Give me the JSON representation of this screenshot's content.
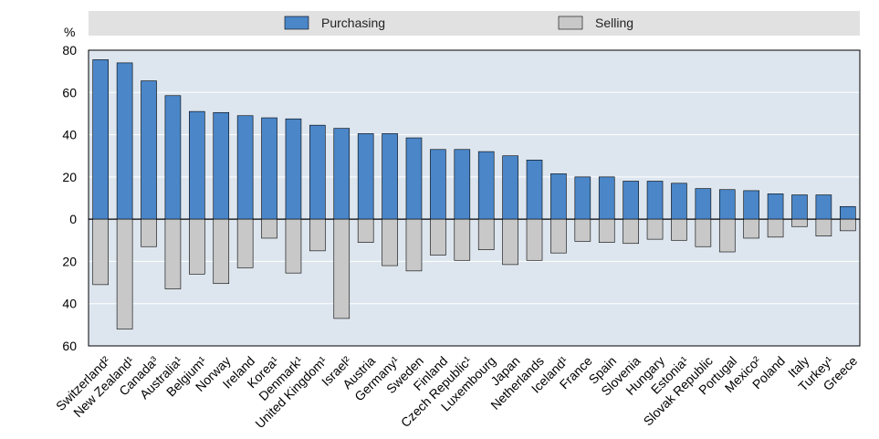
{
  "chart_data": {
    "type": "bar",
    "ylabel": "%",
    "ylim": [
      -60,
      80
    ],
    "yticks": [
      80,
      60,
      40,
      20,
      0,
      -20,
      -40,
      -60
    ],
    "ytick_labels": [
      "80",
      "60",
      "40",
      "20",
      "0",
      "20",
      "40",
      "60"
    ],
    "legend_position": "top",
    "grid": true,
    "categories": [
      "Switzerland²",
      "New Zealand¹",
      "Canada³",
      "Australia¹",
      "Belgium¹",
      "Norway",
      "Ireland",
      "Korea¹",
      "Denmark¹",
      "United Kingdom¹",
      "Israel²",
      "Austria",
      "Germany¹",
      "Sweden",
      "Finland",
      "Czech Republic¹",
      "Luxembourg",
      "Japan",
      "Netherlands",
      "Iceland¹",
      "France",
      "Spain",
      "Slovenia",
      "Hungary",
      "Estonia¹",
      "Slovak Republic",
      "Portugal",
      "Mexico²",
      "Poland",
      "Italy",
      "Turkey¹",
      "Greece"
    ],
    "series": [
      {
        "name": "Purchasing",
        "color": "#4a86c8",
        "values": [
          75.5,
          74,
          65.5,
          58.5,
          51,
          50.5,
          49,
          48,
          47.5,
          44.5,
          43,
          40.5,
          40.5,
          38.5,
          33,
          33,
          32,
          30,
          28,
          21.5,
          20,
          20,
          18,
          18,
          17,
          14.5,
          14,
          13.5,
          12,
          11.5,
          11.5,
          6
        ]
      },
      {
        "name": "Selling",
        "color": "#c8c8c8",
        "values": [
          -31,
          -52,
          -13,
          -33,
          -26,
          -30.5,
          -23,
          -9,
          -25.5,
          -15,
          -47,
          -11,
          -22,
          -24.5,
          -17,
          -19.5,
          -14.5,
          -21.5,
          -19.5,
          -16,
          -10.5,
          -11,
          -11.5,
          -9.5,
          -10,
          -13,
          -15.5,
          -9,
          -8.5,
          -3.5,
          -8,
          -5.5
        ]
      }
    ]
  }
}
